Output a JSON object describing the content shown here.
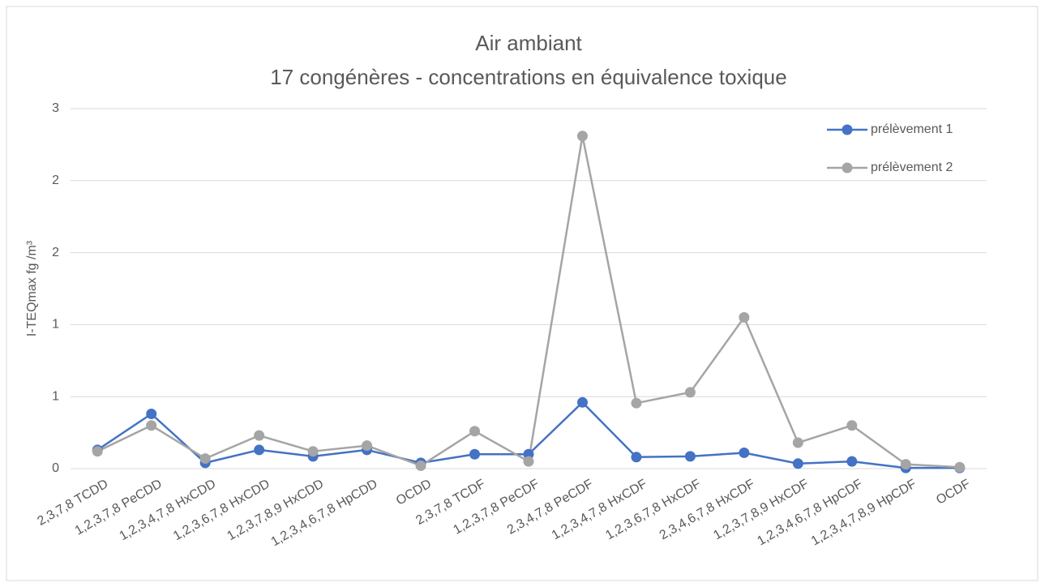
{
  "chart_data": {
    "type": "line",
    "title": "Air ambiant",
    "subtitle": "17 congénères - concentrations en équivalence toxique",
    "y_label": "I-TEQmax fg /m³",
    "categories": [
      "2,3,7,8 TCDD",
      "1,2,3,7,8 PeCDD",
      "1,2,3,4,7,8 HxCDD",
      "1,2,3,6,7,8 HxCDD",
      "1,2,3,7,8,9 HxCDD",
      "1,2,3,4,6,7,8 HpCDD",
      "OCDD",
      "2,3,7,8 TCDF",
      "1,2,3,7,8 PeCDF",
      "2,3,4,7,8 PeCDF",
      "1,2,3,4,7,8 HxCDF",
      "1,2,3,6,7,8 HxCDF",
      "2,3,4,6,7,8 HxCDF",
      "1,2,3,7,8,9 HxCDF",
      "1,2,3,4,6,7,8 HpCDF",
      "1,2,3,4,7,8,9 HpCDF",
      "OCDF"
    ],
    "series": [
      {
        "name": "prélèvement 1",
        "color": "#4472c4",
        "values": [
          0.13,
          0.38,
          0.04,
          0.13,
          0.085,
          0.13,
          0.04,
          0.1,
          0.1,
          0.46,
          0.08,
          0.085,
          0.11,
          0.035,
          0.05,
          0.005,
          0.005
        ]
      },
      {
        "name": "prélèvement 2",
        "color": "#a5a5a5",
        "values": [
          0.12,
          0.3,
          0.07,
          0.23,
          0.12,
          0.16,
          0.02,
          0.26,
          0.05,
          2.31,
          0.455,
          0.53,
          1.05,
          0.18,
          0.3,
          0.03,
          0.01
        ]
      }
    ],
    "ylim": [
      0,
      2.5
    ],
    "yticks": [
      0,
      {
        "value": 0.5,
        "label": "1"
      },
      {
        "value": 1,
        "label": "1"
      },
      {
        "value": 1.5,
        "label": "2"
      },
      {
        "value": 2,
        "label": "2"
      },
      {
        "value": 2.5,
        "label": "3"
      }
    ],
    "grid": true,
    "legend": "top-right"
  }
}
